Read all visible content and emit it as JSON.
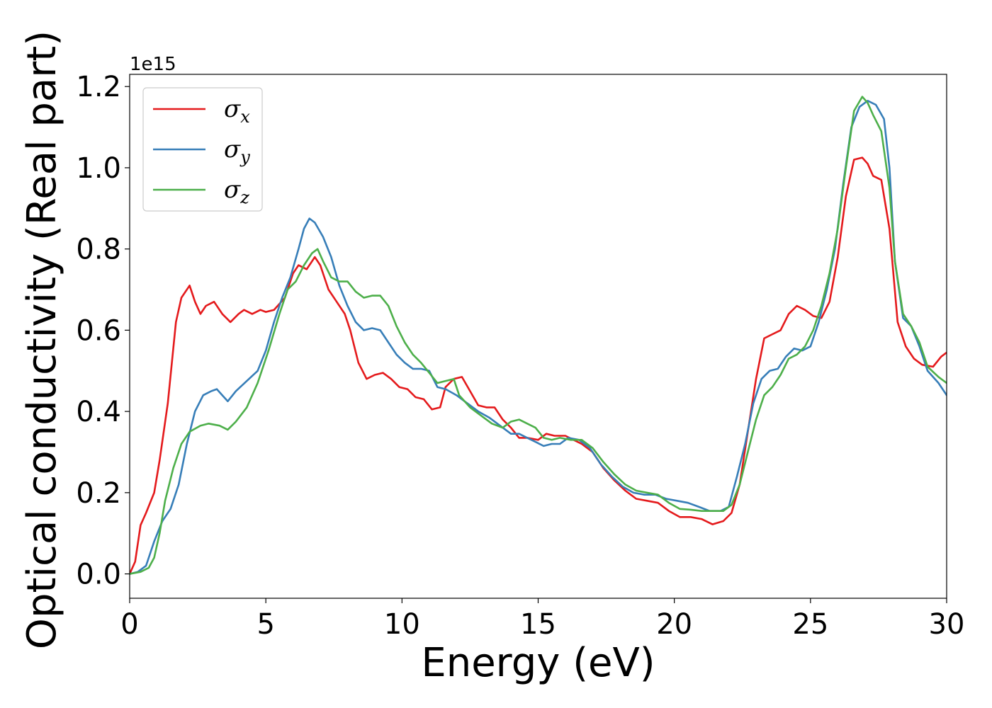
{
  "chart_data": {
    "type": "line",
    "xlabel": "Energy (eV)",
    "ylabel": "Optical conductivity (Real part)",
    "y_offset_label": "1e15",
    "xlim": [
      0,
      30
    ],
    "ylim": [
      -0.06,
      1.23
    ],
    "x_ticks": [
      0,
      5,
      10,
      15,
      20,
      25,
      30
    ],
    "x_tick_labels": [
      "0",
      "5",
      "10",
      "15",
      "20",
      "25",
      "30"
    ],
    "y_ticks": [
      0.0,
      0.2,
      0.4,
      0.6,
      0.8,
      1.0,
      1.2
    ],
    "y_tick_labels": [
      "0.0",
      "0.2",
      "0.4",
      "0.6",
      "0.8",
      "1.0",
      "1.2"
    ],
    "grid": false,
    "legend_position": "top-left",
    "series": [
      {
        "name": "σ",
        "subscript": "x",
        "color": "#e41a1c",
        "points": [
          [
            0,
            0.0
          ],
          [
            0.2,
            0.03
          ],
          [
            0.4,
            0.12
          ],
          [
            0.6,
            0.15
          ],
          [
            0.9,
            0.2
          ],
          [
            1.1,
            0.28
          ],
          [
            1.4,
            0.42
          ],
          [
            1.7,
            0.62
          ],
          [
            1.9,
            0.68
          ],
          [
            2.2,
            0.71
          ],
          [
            2.4,
            0.67
          ],
          [
            2.6,
            0.64
          ],
          [
            2.8,
            0.66
          ],
          [
            3.1,
            0.67
          ],
          [
            3.4,
            0.64
          ],
          [
            3.7,
            0.62
          ],
          [
            4.0,
            0.64
          ],
          [
            4.2,
            0.65
          ],
          [
            4.5,
            0.64
          ],
          [
            4.8,
            0.65
          ],
          [
            5.0,
            0.645
          ],
          [
            5.3,
            0.65
          ],
          [
            5.7,
            0.68
          ],
          [
            6.0,
            0.74
          ],
          [
            6.2,
            0.76
          ],
          [
            6.5,
            0.75
          ],
          [
            6.8,
            0.78
          ],
          [
            7.0,
            0.76
          ],
          [
            7.3,
            0.7
          ],
          [
            7.6,
            0.67
          ],
          [
            7.9,
            0.64
          ],
          [
            8.1,
            0.6
          ],
          [
            8.4,
            0.52
          ],
          [
            8.7,
            0.48
          ],
          [
            9.0,
            0.49
          ],
          [
            9.3,
            0.495
          ],
          [
            9.6,
            0.48
          ],
          [
            9.9,
            0.46
          ],
          [
            10.2,
            0.455
          ],
          [
            10.5,
            0.435
          ],
          [
            10.8,
            0.43
          ],
          [
            11.1,
            0.405
          ],
          [
            11.4,
            0.41
          ],
          [
            11.6,
            0.46
          ],
          [
            11.9,
            0.48
          ],
          [
            12.2,
            0.485
          ],
          [
            12.5,
            0.45
          ],
          [
            12.8,
            0.415
          ],
          [
            13.1,
            0.41
          ],
          [
            13.4,
            0.41
          ],
          [
            13.7,
            0.38
          ],
          [
            14.0,
            0.36
          ],
          [
            14.3,
            0.335
          ],
          [
            14.6,
            0.335
          ],
          [
            15.0,
            0.33
          ],
          [
            15.3,
            0.345
          ],
          [
            15.6,
            0.34
          ],
          [
            16.0,
            0.34
          ],
          [
            16.3,
            0.33
          ],
          [
            16.6,
            0.32
          ],
          [
            17.0,
            0.3
          ],
          [
            17.4,
            0.26
          ],
          [
            17.8,
            0.23
          ],
          [
            18.2,
            0.205
          ],
          [
            18.6,
            0.185
          ],
          [
            19.0,
            0.18
          ],
          [
            19.4,
            0.175
          ],
          [
            19.8,
            0.155
          ],
          [
            20.2,
            0.14
          ],
          [
            20.6,
            0.14
          ],
          [
            21.0,
            0.135
          ],
          [
            21.4,
            0.122
          ],
          [
            21.8,
            0.13
          ],
          [
            22.1,
            0.15
          ],
          [
            22.4,
            0.22
          ],
          [
            22.7,
            0.35
          ],
          [
            23.0,
            0.48
          ],
          [
            23.3,
            0.58
          ],
          [
            23.6,
            0.59
          ],
          [
            23.9,
            0.6
          ],
          [
            24.2,
            0.64
          ],
          [
            24.5,
            0.66
          ],
          [
            24.8,
            0.65
          ],
          [
            25.1,
            0.635
          ],
          [
            25.4,
            0.63
          ],
          [
            25.7,
            0.67
          ],
          [
            26.0,
            0.78
          ],
          [
            26.3,
            0.93
          ],
          [
            26.6,
            1.02
          ],
          [
            26.9,
            1.025
          ],
          [
            27.1,
            1.01
          ],
          [
            27.3,
            0.98
          ],
          [
            27.6,
            0.97
          ],
          [
            27.9,
            0.85
          ],
          [
            28.2,
            0.62
          ],
          [
            28.5,
            0.56
          ],
          [
            28.8,
            0.53
          ],
          [
            29.1,
            0.515
          ],
          [
            29.5,
            0.51
          ],
          [
            29.8,
            0.535
          ],
          [
            30,
            0.545
          ]
        ]
      },
      {
        "name": "σ",
        "subscript": "y",
        "color": "#377eb8",
        "points": [
          [
            0,
            0.0
          ],
          [
            0.3,
            0.005
          ],
          [
            0.6,
            0.02
          ],
          [
            0.9,
            0.08
          ],
          [
            1.2,
            0.13
          ],
          [
            1.5,
            0.16
          ],
          [
            1.8,
            0.22
          ],
          [
            2.1,
            0.32
          ],
          [
            2.4,
            0.4
          ],
          [
            2.7,
            0.44
          ],
          [
            3.0,
            0.45
          ],
          [
            3.2,
            0.455
          ],
          [
            3.4,
            0.44
          ],
          [
            3.6,
            0.425
          ],
          [
            3.9,
            0.45
          ],
          [
            4.3,
            0.475
          ],
          [
            4.7,
            0.5
          ],
          [
            5.0,
            0.55
          ],
          [
            5.3,
            0.62
          ],
          [
            5.6,
            0.68
          ],
          [
            5.9,
            0.73
          ],
          [
            6.2,
            0.8
          ],
          [
            6.4,
            0.85
          ],
          [
            6.6,
            0.875
          ],
          [
            6.8,
            0.865
          ],
          [
            7.1,
            0.83
          ],
          [
            7.4,
            0.78
          ],
          [
            7.7,
            0.71
          ],
          [
            8.0,
            0.66
          ],
          [
            8.3,
            0.62
          ],
          [
            8.6,
            0.6
          ],
          [
            8.9,
            0.605
          ],
          [
            9.2,
            0.6
          ],
          [
            9.5,
            0.57
          ],
          [
            9.8,
            0.54
          ],
          [
            10.1,
            0.52
          ],
          [
            10.4,
            0.505
          ],
          [
            10.7,
            0.505
          ],
          [
            11.0,
            0.5
          ],
          [
            11.3,
            0.46
          ],
          [
            11.6,
            0.455
          ],
          [
            12.0,
            0.44
          ],
          [
            12.4,
            0.42
          ],
          [
            12.8,
            0.4
          ],
          [
            13.2,
            0.385
          ],
          [
            13.6,
            0.365
          ],
          [
            14.0,
            0.345
          ],
          [
            14.3,
            0.345
          ],
          [
            14.6,
            0.335
          ],
          [
            14.9,
            0.325
          ],
          [
            15.2,
            0.315
          ],
          [
            15.5,
            0.32
          ],
          [
            15.8,
            0.32
          ],
          [
            16.1,
            0.335
          ],
          [
            16.5,
            0.33
          ],
          [
            16.9,
            0.31
          ],
          [
            17.3,
            0.27
          ],
          [
            17.7,
            0.24
          ],
          [
            18.1,
            0.215
          ],
          [
            18.5,
            0.2
          ],
          [
            18.9,
            0.195
          ],
          [
            19.3,
            0.195
          ],
          [
            19.7,
            0.185
          ],
          [
            20.1,
            0.18
          ],
          [
            20.5,
            0.175
          ],
          [
            20.9,
            0.165
          ],
          [
            21.3,
            0.155
          ],
          [
            21.7,
            0.155
          ],
          [
            22.0,
            0.165
          ],
          [
            22.3,
            0.24
          ],
          [
            22.6,
            0.32
          ],
          [
            22.9,
            0.42
          ],
          [
            23.2,
            0.48
          ],
          [
            23.5,
            0.5
          ],
          [
            23.8,
            0.505
          ],
          [
            24.1,
            0.535
          ],
          [
            24.4,
            0.555
          ],
          [
            24.7,
            0.55
          ],
          [
            25.0,
            0.56
          ],
          [
            25.3,
            0.62
          ],
          [
            25.6,
            0.7
          ],
          [
            25.9,
            0.8
          ],
          [
            26.2,
            0.96
          ],
          [
            26.5,
            1.1
          ],
          [
            26.8,
            1.15
          ],
          [
            27.1,
            1.165
          ],
          [
            27.4,
            1.155
          ],
          [
            27.7,
            1.12
          ],
          [
            27.9,
            1.0
          ],
          [
            28.1,
            0.77
          ],
          [
            28.4,
            0.63
          ],
          [
            28.7,
            0.61
          ],
          [
            29.0,
            0.56
          ],
          [
            29.3,
            0.5
          ],
          [
            29.7,
            0.47
          ],
          [
            30,
            0.44
          ]
        ]
      },
      {
        "name": "σ",
        "subscript": "z",
        "color": "#4daf4a",
        "points": [
          [
            0,
            0.0
          ],
          [
            0.4,
            0.005
          ],
          [
            0.7,
            0.015
          ],
          [
            0.9,
            0.04
          ],
          [
            1.1,
            0.1
          ],
          [
            1.3,
            0.18
          ],
          [
            1.6,
            0.26
          ],
          [
            1.9,
            0.32
          ],
          [
            2.2,
            0.35
          ],
          [
            2.6,
            0.365
          ],
          [
            2.9,
            0.37
          ],
          [
            3.3,
            0.365
          ],
          [
            3.6,
            0.355
          ],
          [
            3.9,
            0.375
          ],
          [
            4.3,
            0.41
          ],
          [
            4.7,
            0.47
          ],
          [
            5.1,
            0.55
          ],
          [
            5.5,
            0.64
          ],
          [
            5.8,
            0.7
          ],
          [
            6.1,
            0.72
          ],
          [
            6.4,
            0.76
          ],
          [
            6.7,
            0.79
          ],
          [
            6.9,
            0.8
          ],
          [
            7.1,
            0.77
          ],
          [
            7.4,
            0.73
          ],
          [
            7.7,
            0.72
          ],
          [
            8.0,
            0.72
          ],
          [
            8.3,
            0.695
          ],
          [
            8.6,
            0.68
          ],
          [
            8.9,
            0.685
          ],
          [
            9.2,
            0.685
          ],
          [
            9.5,
            0.66
          ],
          [
            9.8,
            0.61
          ],
          [
            10.1,
            0.57
          ],
          [
            10.4,
            0.54
          ],
          [
            10.7,
            0.52
          ],
          [
            11.0,
            0.495
          ],
          [
            11.3,
            0.47
          ],
          [
            11.6,
            0.475
          ],
          [
            11.9,
            0.48
          ],
          [
            12.1,
            0.44
          ],
          [
            12.5,
            0.41
          ],
          [
            12.9,
            0.39
          ],
          [
            13.3,
            0.37
          ],
          [
            13.7,
            0.36
          ],
          [
            14.0,
            0.375
          ],
          [
            14.3,
            0.38
          ],
          [
            14.6,
            0.37
          ],
          [
            14.9,
            0.36
          ],
          [
            15.2,
            0.335
          ],
          [
            15.5,
            0.33
          ],
          [
            15.8,
            0.335
          ],
          [
            16.2,
            0.33
          ],
          [
            16.6,
            0.33
          ],
          [
            17.0,
            0.31
          ],
          [
            17.4,
            0.275
          ],
          [
            17.8,
            0.245
          ],
          [
            18.2,
            0.22
          ],
          [
            18.6,
            0.205
          ],
          [
            19.0,
            0.2
          ],
          [
            19.4,
            0.195
          ],
          [
            19.8,
            0.175
          ],
          [
            20.2,
            0.16
          ],
          [
            20.6,
            0.158
          ],
          [
            21.0,
            0.155
          ],
          [
            21.4,
            0.155
          ],
          [
            21.8,
            0.155
          ],
          [
            22.1,
            0.17
          ],
          [
            22.4,
            0.22
          ],
          [
            22.7,
            0.3
          ],
          [
            23.0,
            0.38
          ],
          [
            23.3,
            0.44
          ],
          [
            23.6,
            0.46
          ],
          [
            23.9,
            0.49
          ],
          [
            24.2,
            0.53
          ],
          [
            24.5,
            0.54
          ],
          [
            24.8,
            0.56
          ],
          [
            25.1,
            0.6
          ],
          [
            25.4,
            0.66
          ],
          [
            25.7,
            0.74
          ],
          [
            26.0,
            0.85
          ],
          [
            26.3,
            1.0
          ],
          [
            26.6,
            1.14
          ],
          [
            26.9,
            1.175
          ],
          [
            27.1,
            1.16
          ],
          [
            27.3,
            1.13
          ],
          [
            27.6,
            1.09
          ],
          [
            27.9,
            0.95
          ],
          [
            28.1,
            0.77
          ],
          [
            28.4,
            0.64
          ],
          [
            28.7,
            0.61
          ],
          [
            29.0,
            0.57
          ],
          [
            29.3,
            0.51
          ],
          [
            29.7,
            0.485
          ],
          [
            30,
            0.47
          ]
        ]
      }
    ]
  }
}
